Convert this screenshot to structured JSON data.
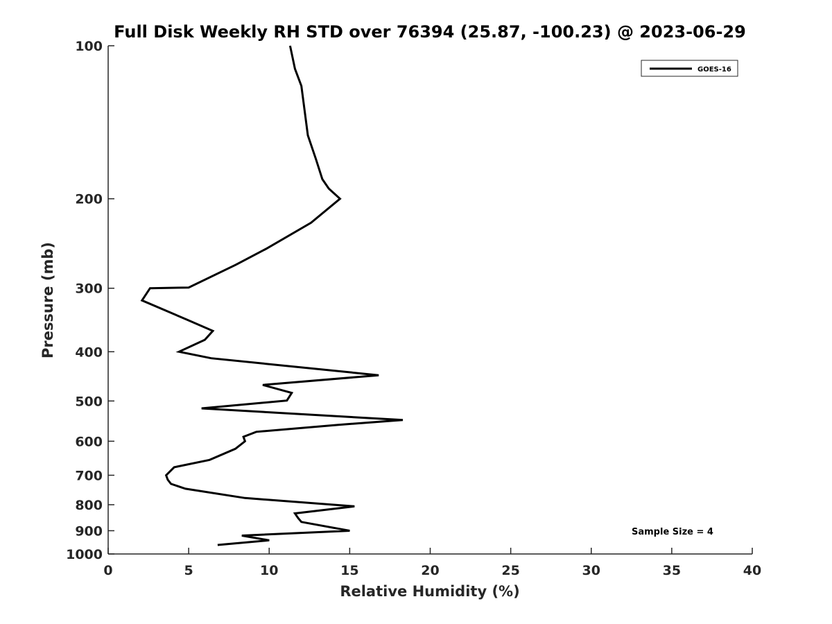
{
  "chart_data": {
    "type": "line",
    "title": "Full Disk Weekly RH STD over 76394 (25.87, -100.23) @ 2023-06-29",
    "xlabel": "Relative Humidity (%)",
    "ylabel": "Pressure (mb)",
    "xlim": [
      0,
      40
    ],
    "ylim": [
      100,
      1000
    ],
    "y_scale": "log",
    "y_reversed": true,
    "x_ticks": [
      0,
      5,
      10,
      15,
      20,
      25,
      30,
      35,
      40
    ],
    "y_ticks": [
      100,
      200,
      300,
      400,
      500,
      600,
      700,
      800,
      900,
      1000
    ],
    "grid": false,
    "legend_position": "top-right",
    "annotation": "Sample Size = 4",
    "series": [
      {
        "name": "GOES-16",
        "color": "#000000",
        "x": [
          11.3,
          11.6,
          12.0,
          12.2,
          12.4,
          12.9,
          13.3,
          13.7,
          14.4,
          12.6,
          9.8,
          7.9,
          5.0,
          2.6,
          2.1,
          4.9,
          6.5,
          6.0,
          4.4,
          6.4,
          16.8,
          9.6,
          11.4,
          11.1,
          5.8,
          18.3,
          14.3,
          9.2,
          8.4,
          8.5,
          7.9,
          6.3,
          4.1,
          3.6,
          3.7,
          3.9,
          4.8,
          8.5,
          15.3,
          11.6,
          11.8,
          12.0,
          15.0,
          8.3,
          10.0,
          6.8
        ],
        "y": [
          100,
          111,
          120,
          134,
          150,
          167,
          183,
          191,
          200,
          223,
          251,
          270,
          299,
          300,
          317,
          346,
          364,
          379,
          400,
          412,
          445,
          465,
          482,
          499,
          517,
          545,
          557,
          575,
          588,
          600,
          621,
          653,
          675,
          700,
          714,
          728,
          744,
          776,
          806,
          832,
          850,
          865,
          900,
          920,
          940,
          960
        ]
      }
    ]
  }
}
